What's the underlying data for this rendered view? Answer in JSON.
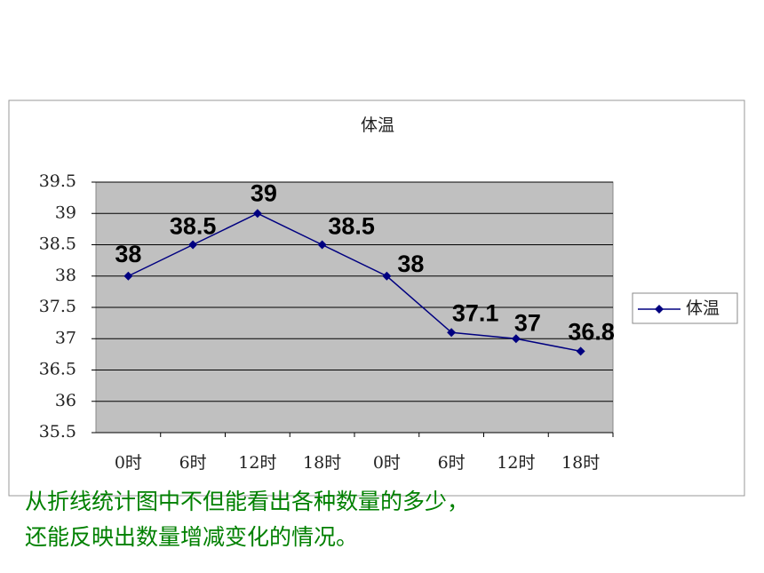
{
  "chart_data": {
    "type": "line",
    "title": "体温",
    "categories": [
      "0时",
      "6时",
      "12时",
      "18时",
      "0时",
      "6时",
      "12时",
      "18时"
    ],
    "series": [
      {
        "name": "体温",
        "color": "#000080",
        "values": [
          38,
          38.5,
          39,
          38.5,
          38,
          37.1,
          37,
          36.8
        ]
      }
    ],
    "ylim": [
      35.5,
      39.5
    ],
    "yticks": [
      35.5,
      36,
      36.5,
      37,
      37.5,
      38,
      38.5,
      39,
      39.5
    ],
    "grid": true,
    "legend": "right",
    "data_labels": true
  },
  "caption": [
    "从折线统计图中不但能看出各种数量的多少，",
    "还能反映出数量增减变化的情况。"
  ]
}
